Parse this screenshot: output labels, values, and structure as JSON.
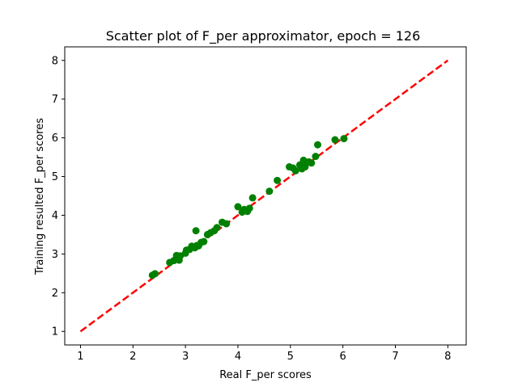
{
  "chart_data": {
    "type": "scatter",
    "title": "Scatter plot of F_per approximator, epoch = 126",
    "xlabel": "Real F_per scores",
    "ylabel": "Training resulted F_per scores",
    "xlim": [
      0.7,
      8.35
    ],
    "ylim": [
      0.65,
      8.35
    ],
    "xticks": [
      1,
      2,
      3,
      4,
      5,
      6,
      7,
      8
    ],
    "yticks": [
      1,
      2,
      3,
      4,
      5,
      6,
      7,
      8
    ],
    "grid": false,
    "colors": {
      "points": "#008000",
      "reference_line": "#ff0000"
    },
    "reference_line": {
      "style": "dashed",
      "x": [
        1,
        8
      ],
      "y": [
        1,
        8
      ]
    },
    "points": [
      [
        2.37,
        2.45
      ],
      [
        2.42,
        2.49
      ],
      [
        2.7,
        2.78
      ],
      [
        2.78,
        2.83
      ],
      [
        2.83,
        2.96
      ],
      [
        2.9,
        2.95
      ],
      [
        2.88,
        2.84
      ],
      [
        3.0,
        3.02
      ],
      [
        3.02,
        3.1
      ],
      [
        3.08,
        3.12
      ],
      [
        3.12,
        3.2
      ],
      [
        3.18,
        3.16
      ],
      [
        3.22,
        3.22
      ],
      [
        3.25,
        3.21
      ],
      [
        3.3,
        3.3
      ],
      [
        3.35,
        3.32
      ],
      [
        3.2,
        3.6
      ],
      [
        3.42,
        3.5
      ],
      [
        3.48,
        3.55
      ],
      [
        3.55,
        3.6
      ],
      [
        3.6,
        3.68
      ],
      [
        3.7,
        3.82
      ],
      [
        3.78,
        3.78
      ],
      [
        4.0,
        4.22
      ],
      [
        4.08,
        4.08
      ],
      [
        4.12,
        4.15
      ],
      [
        4.18,
        4.1
      ],
      [
        4.22,
        4.18
      ],
      [
        4.28,
        4.45
      ],
      [
        4.6,
        4.62
      ],
      [
        4.75,
        4.9
      ],
      [
        4.98,
        5.25
      ],
      [
        5.05,
        5.22
      ],
      [
        5.1,
        5.15
      ],
      [
        5.18,
        5.3
      ],
      [
        5.22,
        5.2
      ],
      [
        5.25,
        5.42
      ],
      [
        5.28,
        5.25
      ],
      [
        5.35,
        5.38
      ],
      [
        5.4,
        5.35
      ],
      [
        5.48,
        5.52
      ],
      [
        5.52,
        5.82
      ],
      [
        5.85,
        5.95
      ],
      [
        6.02,
        5.98
      ]
    ]
  }
}
